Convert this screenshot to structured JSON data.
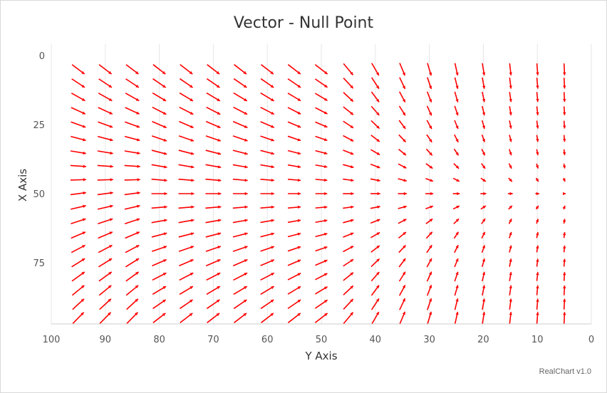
{
  "title": "Vector - Null Point",
  "credit": "RealChart v1.0",
  "arrow_color": "#ff0000",
  "chart_data": {
    "type": "vector",
    "title": "Vector - Null Point",
    "xlabel": "Y Axis",
    "ylabel": "X Axis",
    "x_range": [
      100,
      0
    ],
    "y_range": [
      0,
      100
    ],
    "x_reversed": true,
    "y_reversed": true,
    "x_ticks": [
      "100",
      "90",
      "80",
      "70",
      "60",
      "50",
      "40",
      "30",
      "20",
      "10",
      "0"
    ],
    "y_ticks": [
      "0",
      "25",
      "50",
      "75"
    ],
    "x_grid": true,
    "y_grid": false,
    "field": {
      "x_values": [
        95,
        90,
        85,
        80,
        75,
        70,
        65,
        60,
        55,
        50,
        45,
        40,
        35,
        30,
        25,
        20,
        15,
        10,
        5
      ],
      "y_values": [
        5,
        10,
        15,
        20,
        25,
        30,
        35,
        40,
        45,
        50,
        55,
        60,
        65,
        70,
        75,
        80,
        85,
        90,
        95
      ],
      "null_point": {
        "x": 5,
        "y": 50
      },
      "description": "Vectors converge toward a null point near Y Axis = 5, X Axis = 50"
    }
  }
}
